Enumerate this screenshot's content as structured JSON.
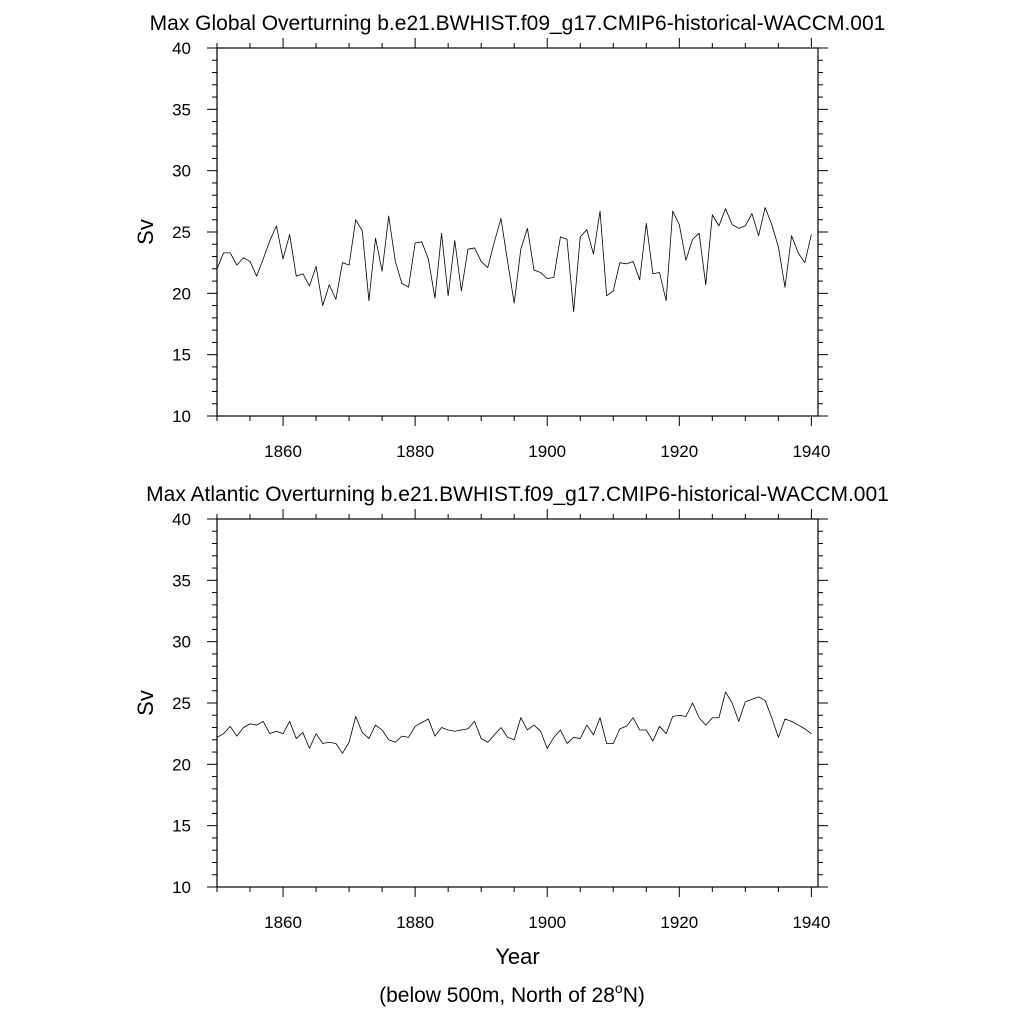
{
  "figure": {
    "footnote": {
      "prefix": "(below 500m, North of 28",
      "superscript": "o",
      "suffix": "N)"
    }
  },
  "chart_data": [
    {
      "type": "line",
      "title": "Max Global Overturning b.e21.BWHIST.f09_g17.CMIP6-historical-WACCM.001",
      "xlabel": "",
      "ylabel": "Sv",
      "xlim": [
        1850,
        1941
      ],
      "ylim": [
        10,
        40
      ],
      "x_ticks": [
        1860,
        1880,
        1900,
        1920,
        1940
      ],
      "y_ticks": [
        10,
        15,
        20,
        25,
        30,
        35,
        40
      ],
      "x_minor_step": 5,
      "y_minor_step": 1,
      "grid": false,
      "line_color": "#000000",
      "series": [
        {
          "x_start": 1850,
          "x_step": 1,
          "values": [
            22.0,
            23.3,
            23.3,
            22.3,
            22.9,
            22.6,
            21.4,
            22.8,
            24.3,
            25.5,
            22.8,
            24.8,
            21.4,
            21.6,
            20.6,
            22.2,
            19.0,
            20.7,
            19.5,
            22.5,
            22.3,
            26.0,
            25.1,
            19.4,
            24.5,
            21.8,
            26.3,
            22.6,
            20.8,
            20.5,
            24.1,
            24.2,
            22.8,
            19.6,
            24.9,
            19.8,
            24.3,
            20.2,
            23.6,
            23.7,
            22.6,
            22.1,
            24.2,
            26.1,
            22.6,
            19.2,
            23.6,
            25.3,
            21.9,
            21.7,
            21.2,
            21.3,
            24.6,
            24.4,
            18.5,
            24.6,
            25.2,
            23.2,
            26.7,
            19.8,
            20.2,
            22.5,
            22.4,
            22.6,
            21.1,
            25.7,
            21.6,
            21.7,
            19.4,
            26.7,
            25.6,
            22.7,
            24.4,
            24.9,
            20.7,
            26.4,
            25.5,
            26.9,
            25.6,
            25.3,
            25.5,
            26.5,
            24.7,
            27.0,
            25.6,
            23.8,
            20.5,
            24.7,
            23.3,
            22.5,
            24.8
          ]
        }
      ]
    },
    {
      "type": "line",
      "title": "Max Atlantic Overturning b.e21.BWHIST.f09_g17.CMIP6-historical-WACCM.001",
      "xlabel": "Year",
      "ylabel": "Sv",
      "xlim": [
        1850,
        1941
      ],
      "ylim": [
        10,
        40
      ],
      "x_ticks": [
        1860,
        1880,
        1900,
        1920,
        1940
      ],
      "y_ticks": [
        10,
        15,
        20,
        25,
        30,
        35,
        40
      ],
      "x_minor_step": 5,
      "y_minor_step": 1,
      "grid": false,
      "line_color": "#000000",
      "series": [
        {
          "x_start": 1850,
          "x_step": 1,
          "values": [
            22.2,
            22.5,
            23.1,
            22.3,
            23.0,
            23.3,
            23.2,
            23.5,
            22.5,
            22.7,
            22.5,
            23.5,
            22.1,
            22.6,
            21.3,
            22.5,
            21.7,
            21.8,
            21.7,
            20.9,
            21.8,
            23.9,
            22.6,
            22.1,
            23.2,
            22.8,
            22.0,
            21.8,
            22.3,
            22.2,
            23.1,
            23.4,
            23.7,
            22.3,
            23.0,
            22.8,
            22.7,
            22.8,
            22.9,
            23.5,
            22.1,
            21.8,
            22.4,
            23.0,
            22.2,
            22.0,
            23.8,
            22.8,
            23.2,
            22.7,
            21.3,
            22.2,
            22.8,
            21.7,
            22.2,
            22.1,
            23.2,
            22.4,
            23.8,
            21.7,
            21.7,
            22.9,
            23.1,
            23.8,
            22.8,
            22.8,
            21.9,
            23.1,
            22.5,
            23.9,
            24.0,
            23.9,
            25.0,
            23.8,
            23.2,
            23.8,
            23.8,
            25.9,
            25.0,
            23.5,
            25.1,
            25.3,
            25.5,
            25.2,
            23.8,
            22.2,
            23.7,
            23.5,
            23.2,
            22.9,
            22.5
          ]
        }
      ]
    }
  ]
}
